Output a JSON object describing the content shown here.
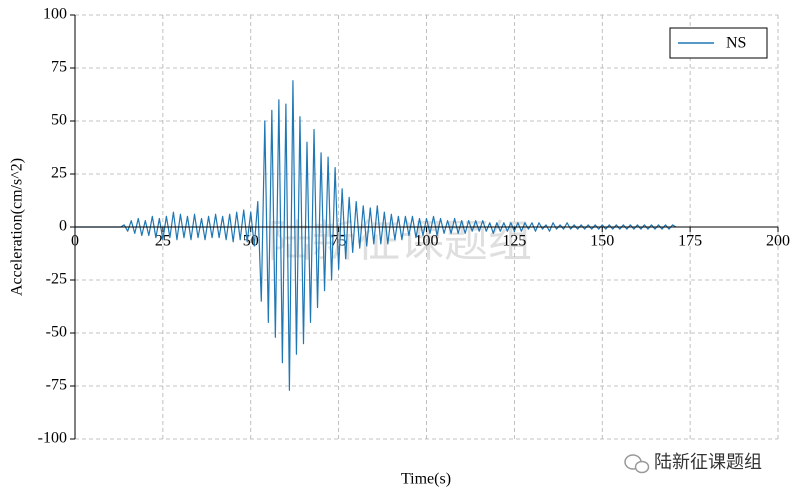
{
  "chart_data": {
    "type": "line",
    "x_label": "Time(s)",
    "y_label": "Acceleration(cm/s^2)",
    "x": [
      0,
      1,
      2,
      3,
      4,
      5,
      6,
      7,
      8,
      9,
      10,
      11,
      12,
      13,
      14,
      15,
      16,
      17,
      18,
      19,
      20,
      21,
      22,
      23,
      24,
      25,
      26,
      27,
      28,
      29,
      30,
      31,
      32,
      33,
      34,
      35,
      36,
      37,
      38,
      39,
      40,
      41,
      42,
      43,
      44,
      45,
      46,
      47,
      48,
      49,
      50,
      51,
      52,
      53,
      54,
      55,
      56,
      57,
      58,
      59,
      60,
      61,
      62,
      63,
      64,
      65,
      66,
      67,
      68,
      69,
      70,
      71,
      72,
      73,
      74,
      75,
      76,
      77,
      78,
      79,
      80,
      81,
      82,
      83,
      84,
      85,
      86,
      87,
      88,
      89,
      90,
      91,
      92,
      93,
      94,
      95,
      96,
      97,
      98,
      99,
      100,
      101,
      102,
      103,
      104,
      105,
      106,
      107,
      108,
      109,
      110,
      111,
      112,
      113,
      114,
      115,
      116,
      117,
      118,
      119,
      120,
      121,
      122,
      123,
      124,
      125,
      126,
      127,
      128,
      129,
      130,
      131,
      132,
      133,
      134,
      135,
      136,
      137,
      138,
      139,
      140,
      141,
      142,
      143,
      144,
      145,
      146,
      147,
      148,
      149,
      150,
      151,
      152,
      153,
      154,
      155,
      156,
      157,
      158,
      159,
      160,
      161,
      162,
      163,
      164,
      165,
      166,
      167,
      168,
      169,
      170,
      171
    ],
    "series": [
      {
        "name": "NS",
        "color": "#1f77b4",
        "values": [
          0,
          0,
          0,
          0,
          0,
          0,
          0,
          0,
          0,
          0,
          0,
          0,
          0,
          0,
          1,
          -2,
          3,
          -3,
          4,
          -4,
          3,
          -4,
          5,
          -5,
          4,
          -6,
          5,
          -5,
          7,
          -6,
          6,
          -5,
          5,
          -6,
          6,
          -5,
          4,
          -6,
          5,
          -5,
          6,
          -5,
          5,
          -6,
          6,
          -7,
          7,
          -6,
          8,
          -7,
          7,
          -9,
          12,
          -35,
          50,
          -45,
          55,
          -52,
          60,
          -64,
          58,
          -77,
          69,
          -60,
          52,
          -55,
          40,
          -45,
          46,
          -38,
          35,
          -30,
          33,
          -25,
          28,
          -20,
          18,
          -15,
          14,
          -12,
          12,
          -10,
          10,
          -9,
          9,
          -8,
          10,
          -8,
          7,
          -8,
          6,
          -6,
          5,
          -6,
          5,
          -4,
          5,
          -5,
          4,
          -4,
          4,
          -3,
          5,
          -4,
          4,
          -3,
          3,
          -3,
          4,
          -3,
          3,
          -3,
          3,
          -2,
          3,
          -2,
          3,
          -2,
          2,
          -3,
          2,
          -2,
          2,
          -2,
          2,
          -2,
          2,
          -2,
          2,
          -1,
          2,
          -2,
          2,
          -1,
          1,
          -2,
          2,
          -1,
          1,
          -1,
          2,
          -1,
          1,
          -1,
          1,
          -1,
          1,
          -1,
          1,
          -1,
          1,
          -1,
          1,
          -1,
          1,
          -1,
          1,
          -1,
          1,
          -1,
          1,
          -1,
          1,
          -1,
          1,
          -1,
          1,
          -1,
          1,
          -1,
          1,
          0
        ]
      }
    ],
    "xlim": [
      0,
      200
    ],
    "xticks": [
      0,
      25,
      50,
      75,
      100,
      125,
      150,
      175,
      200
    ],
    "ylim": [
      -100,
      100
    ],
    "yticks": [
      -100,
      -75,
      -50,
      -25,
      0,
      25,
      50,
      75,
      100
    ],
    "grid": true,
    "legend": "upper right",
    "watermark": "陆新征课题组",
    "footer_watermark": "陆新征课题组"
  }
}
